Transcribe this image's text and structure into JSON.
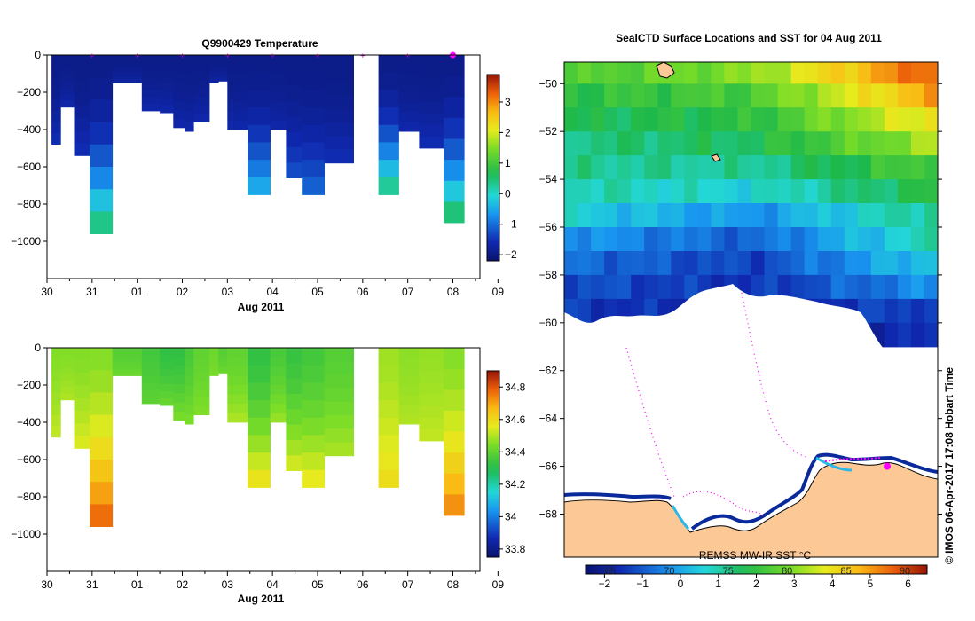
{
  "top_panel": {
    "title": "Q9900429  Temperature",
    "x_ticks": [
      "30",
      "31",
      "01",
      "02",
      "03",
      "04",
      "05",
      "06",
      "07",
      "08",
      "09"
    ],
    "x_month_label": "Aug 2011",
    "y_ticks": [
      "0",
      "−200",
      "−400",
      "−600",
      "−800",
      "−1000"
    ],
    "colorbar_ticks": [
      "3",
      "2",
      "1",
      "0",
      "−1",
      "−2"
    ]
  },
  "bottom_panel": {
    "x_ticks": [
      "30",
      "31",
      "01",
      "02",
      "03",
      "04",
      "05",
      "06",
      "07",
      "08",
      "09"
    ],
    "x_month_label": "Aug 2011",
    "y_ticks": [
      "0",
      "−200",
      "−400",
      "−600",
      "−800",
      "−1000"
    ],
    "colorbar_ticks": [
      "34.8",
      "34.6",
      "34.4",
      "34.2",
      "34",
      "33.8"
    ]
  },
  "map_panel": {
    "title": "SealCTD Surface Locations and SST for 04 Aug 2011",
    "lat_ticks": [
      "−50",
      "−52",
      "−54",
      "−56",
      "−58",
      "−60",
      "−62",
      "−64",
      "−66",
      "−68"
    ],
    "product_label": "REMSS MW-IR SST °C",
    "colorbar_ticks": [
      "−2",
      "−1",
      "0",
      "1",
      "2",
      "3",
      "4",
      "5",
      "6"
    ],
    "lon_labels": [
      "65",
      "70",
      "75",
      "80",
      "85",
      "90"
    ],
    "credit": "©  IMOS 06-Apr-2017 17:08 Hobart Time"
  },
  "colors": {
    "land": "#fcc895",
    "ice": "#ffffff",
    "track": "#ff00ff",
    "coast": "#000000"
  },
  "chart_data": [
    {
      "type": "heatmap",
      "title": "Q9900429  Temperature",
      "xlabel": "Aug 2011",
      "ylabel": "",
      "x_unit": "days since 30 Jul 2011",
      "xlim": [
        0,
        9.6
      ],
      "ylim": [
        -1200,
        0
      ],
      "colorbar_range": [
        -2.2,
        3.9
      ],
      "profile_markers_x": [
        1.0,
        2.0,
        3.0,
        4.0,
        5.0,
        6.0,
        7.0,
        8.0,
        9.0
      ],
      "latest_marker_x": 9.0,
      "profiles": [
        {
          "x0": 0.1,
          "x1": 0.3,
          "max_depth": -480,
          "deep_value": -1.5
        },
        {
          "x0": 0.3,
          "x1": 0.6,
          "max_depth": -280,
          "deep_value": -1.6
        },
        {
          "x0": 0.6,
          "x1": 0.95,
          "max_depth": -540,
          "deep_value": -1.5
        },
        {
          "x0": 0.95,
          "x1": 1.45,
          "max_depth": -960,
          "deep_value": 0.7
        },
        {
          "x0": 1.45,
          "x1": 2.1,
          "max_depth": -150,
          "deep_value": -1.7
        },
        {
          "x0": 2.1,
          "x1": 2.5,
          "max_depth": -300,
          "deep_value": -1.6
        },
        {
          "x0": 2.5,
          "x1": 2.8,
          "max_depth": -310,
          "deep_value": -1.6
        },
        {
          "x0": 2.8,
          "x1": 3.05,
          "max_depth": -390,
          "deep_value": -1.6
        },
        {
          "x0": 3.05,
          "x1": 3.25,
          "max_depth": -410,
          "deep_value": -1.6
        },
        {
          "x0": 3.25,
          "x1": 3.6,
          "max_depth": -360,
          "deep_value": -1.6
        },
        {
          "x0": 3.6,
          "x1": 3.8,
          "max_depth": -150,
          "deep_value": -1.7
        },
        {
          "x0": 3.8,
          "x1": 4.0,
          "max_depth": -140,
          "deep_value": -1.7
        },
        {
          "x0": 4.0,
          "x1": 4.45,
          "max_depth": -400,
          "deep_value": -1.6
        },
        {
          "x0": 4.45,
          "x1": 4.95,
          "max_depth": -750,
          "deep_value": -0.3
        },
        {
          "x0": 4.95,
          "x1": 5.3,
          "max_depth": -400,
          "deep_value": -1.6
        },
        {
          "x0": 5.3,
          "x1": 5.65,
          "max_depth": -660,
          "deep_value": -1.2
        },
        {
          "x0": 5.65,
          "x1": 6.15,
          "max_depth": -750,
          "deep_value": -1.0
        },
        {
          "x0": 6.15,
          "x1": 6.8,
          "max_depth": -580,
          "deep_value": -1.5
        },
        {
          "x0": 7.35,
          "x1": 7.8,
          "max_depth": -750,
          "deep_value": 0.6
        },
        {
          "x0": 7.8,
          "x1": 8.25,
          "max_depth": -410,
          "deep_value": -1.6
        },
        {
          "x0": 8.25,
          "x1": 8.8,
          "max_depth": -500,
          "deep_value": -1.5
        },
        {
          "x0": 8.8,
          "x1": 9.25,
          "max_depth": -900,
          "deep_value": 0.8
        }
      ]
    },
    {
      "type": "heatmap",
      "title": "",
      "xlabel": "Aug 2011",
      "ylabel": "",
      "x_unit": "days since 30 Jul 2011",
      "xlim": [
        0,
        9.6
      ],
      "ylim": [
        -1200,
        0
      ],
      "colorbar_range": [
        33.75,
        34.9
      ],
      "profiles": [
        {
          "x0": 0.1,
          "x1": 0.3,
          "max_depth": -480,
          "surface_value": 34.45,
          "deep_value": 34.52
        },
        {
          "x0": 0.3,
          "x1": 0.6,
          "max_depth": -280,
          "surface_value": 34.45,
          "deep_value": 34.5
        },
        {
          "x0": 0.6,
          "x1": 0.95,
          "max_depth": -540,
          "surface_value": 34.45,
          "deep_value": 34.55
        },
        {
          "x0": 0.95,
          "x1": 1.45,
          "max_depth": -960,
          "surface_value": 34.45,
          "deep_value": 34.8
        },
        {
          "x0": 1.45,
          "x1": 2.1,
          "max_depth": -150,
          "surface_value": 34.38,
          "deep_value": 34.42
        },
        {
          "x0": 2.1,
          "x1": 2.5,
          "max_depth": -300,
          "surface_value": 34.35,
          "deep_value": 34.4
        },
        {
          "x0": 2.5,
          "x1": 2.8,
          "max_depth": -310,
          "surface_value": 34.32,
          "deep_value": 34.42
        },
        {
          "x0": 2.8,
          "x1": 3.05,
          "max_depth": -390,
          "surface_value": 34.32,
          "deep_value": 34.45
        },
        {
          "x0": 3.05,
          "x1": 3.25,
          "max_depth": -410,
          "surface_value": 34.36,
          "deep_value": 34.45
        },
        {
          "x0": 3.25,
          "x1": 3.6,
          "max_depth": -360,
          "surface_value": 34.4,
          "deep_value": 34.45
        },
        {
          "x0": 3.6,
          "x1": 3.8,
          "max_depth": -150,
          "surface_value": 34.42,
          "deep_value": 34.44
        },
        {
          "x0": 3.8,
          "x1": 4.0,
          "max_depth": -140,
          "surface_value": 34.38,
          "deep_value": 34.42
        },
        {
          "x0": 4.0,
          "x1": 4.45,
          "max_depth": -400,
          "surface_value": 34.4,
          "deep_value": 34.5
        },
        {
          "x0": 4.45,
          "x1": 4.95,
          "max_depth": -750,
          "surface_value": 34.32,
          "deep_value": 34.6
        },
        {
          "x0": 4.95,
          "x1": 5.3,
          "max_depth": -400,
          "surface_value": 34.36,
          "deep_value": 34.48
        },
        {
          "x0": 5.3,
          "x1": 5.65,
          "max_depth": -660,
          "surface_value": 34.33,
          "deep_value": 34.55
        },
        {
          "x0": 5.65,
          "x1": 6.15,
          "max_depth": -750,
          "surface_value": 34.35,
          "deep_value": 34.58
        },
        {
          "x0": 6.15,
          "x1": 6.8,
          "max_depth": -580,
          "surface_value": 34.38,
          "deep_value": 34.5
        },
        {
          "x0": 7.35,
          "x1": 7.8,
          "max_depth": -750,
          "surface_value": 34.48,
          "deep_value": 34.6
        },
        {
          "x0": 7.8,
          "x1": 8.25,
          "max_depth": -410,
          "surface_value": 34.46,
          "deep_value": 34.5
        },
        {
          "x0": 8.25,
          "x1": 8.8,
          "max_depth": -500,
          "surface_value": 34.47,
          "deep_value": 34.52
        },
        {
          "x0": 8.8,
          "x1": 9.25,
          "max_depth": -900,
          "surface_value": 34.45,
          "deep_value": 34.75
        }
      ]
    },
    {
      "type": "heatmap",
      "title": "SealCTD Surface Locations and SST for 04 Aug 2011",
      "xlabel": "",
      "ylabel": "",
      "lat_range": [
        -69.8,
        -49.1
      ],
      "colorbar_range": [
        -2.5,
        6.5
      ],
      "colorbar_label": "REMSS MW-IR SST °C",
      "sst_rows": [
        {
          "lat": -49.5,
          "sst_west": 2.3,
          "sst_mid": 3.0,
          "sst_east": 5.8
        },
        {
          "lat": -50.5,
          "sst_west": 1.9,
          "sst_mid": 2.3,
          "sst_east": 5.0
        },
        {
          "lat": -51.5,
          "sst_west": 1.6,
          "sst_mid": 1.9,
          "sst_east": 4.1
        },
        {
          "lat": -52.5,
          "sst_west": 1.3,
          "sst_mid": 1.6,
          "sst_east": 3.3
        },
        {
          "lat": -53.5,
          "sst_west": 1.2,
          "sst_mid": 1.1,
          "sst_east": 2.4
        },
        {
          "lat": -54.5,
          "sst_west": 1.0,
          "sst_mid": 0.6,
          "sst_east": 1.9
        },
        {
          "lat": -55.5,
          "sst_west": 0.6,
          "sst_mid": -0.3,
          "sst_east": 1.3
        },
        {
          "lat": -56.5,
          "sst_west": -0.2,
          "sst_mid": -0.9,
          "sst_east": 1.0
        },
        {
          "lat": -57.5,
          "sst_west": -0.7,
          "sst_mid": -1.3,
          "sst_east": 0.5
        },
        {
          "lat": -58.5,
          "sst_west": -1.1,
          "sst_mid": -1.5,
          "sst_east": -0.3
        },
        {
          "lat": -59.5,
          "sst_west": -1.4,
          "sst_mid": -1.7,
          "sst_east": -1.2
        },
        {
          "lat": -60.5,
          "sst_west": -1.6,
          "sst_mid": -1.8,
          "sst_east": -1.6
        }
      ],
      "seal_track_lat": [
        -61.0,
        -62.5,
        -64.0,
        -65.5,
        -67.0,
        -68.0,
        -66.2
      ],
      "latest_position_lat": -66.0
    }
  ]
}
